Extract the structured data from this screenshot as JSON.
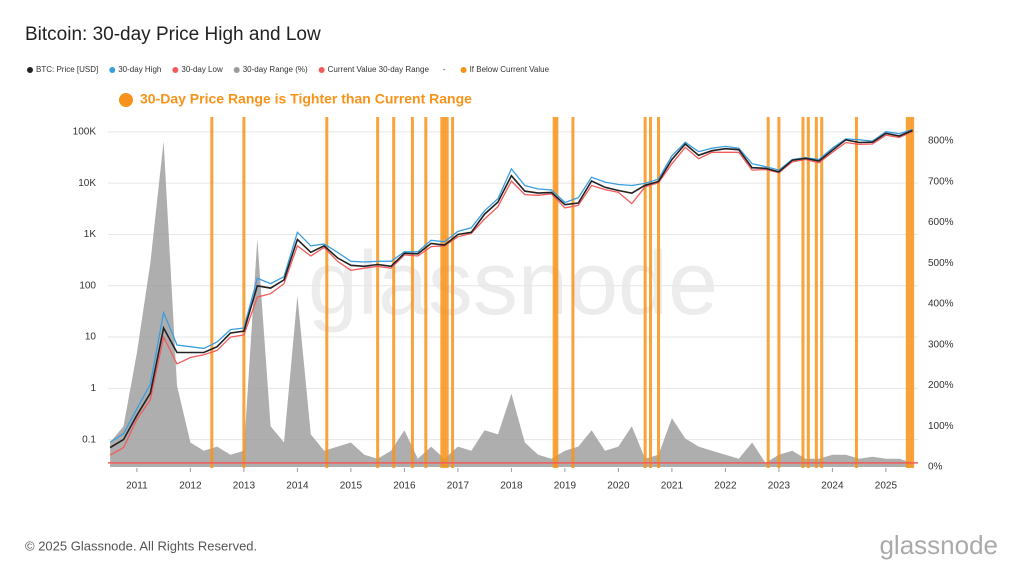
{
  "chart_data": {
    "type": "line",
    "title": "Bitcoin: 30-day Price High and Low",
    "annotation": "30-Day Price Range is Tighter than Current Range",
    "annotation_color": "#f7931a",
    "watermark": "glassnode",
    "footer": "© 2025 Glassnode. All Rights Reserved.",
    "logo": "glassnode",
    "legend_separator": "-",
    "x": [
      2010.5,
      2010.75,
      2011,
      2011.25,
      2011.5,
      2011.75,
      2012,
      2012.25,
      2012.5,
      2012.75,
      2013,
      2013.25,
      2013.5,
      2013.75,
      2014,
      2014.25,
      2014.5,
      2014.75,
      2015,
      2015.25,
      2015.5,
      2015.75,
      2016,
      2016.25,
      2016.5,
      2016.75,
      2017,
      2017.25,
      2017.5,
      2017.75,
      2018,
      2018.25,
      2018.5,
      2018.75,
      2019,
      2019.25,
      2019.5,
      2019.75,
      2020,
      2020.25,
      2020.5,
      2020.75,
      2021,
      2021.25,
      2021.5,
      2021.75,
      2022,
      2022.25,
      2022.5,
      2022.75,
      2023,
      2023.25,
      2023.5,
      2023.75,
      2024,
      2024.25,
      2024.5,
      2024.75,
      2025,
      2025.25,
      2025.5
    ],
    "xlim": [
      2010.46,
      2025.6
    ],
    "xticks": [
      2011,
      2012,
      2013,
      2014,
      2015,
      2016,
      2017,
      2018,
      2019,
      2020,
      2021,
      2022,
      2023,
      2024,
      2025
    ],
    "log_scale": true,
    "grid": true,
    "ylim": [
      0.028,
      195000
    ],
    "yticks": [
      0.1,
      1,
      10,
      100,
      {
        "value": 1000,
        "label": "1K"
      },
      {
        "value": 10000,
        "label": "10K"
      },
      {
        "value": 100000,
        "label": "100K"
      }
    ],
    "y2lim": [
      -2.5,
      859
    ],
    "y2ticks": [
      {
        "value": 0,
        "label": "0%"
      },
      {
        "value": 100,
        "label": "100%"
      },
      {
        "value": 200,
        "label": "200%"
      },
      {
        "value": 300,
        "label": "300%"
      },
      {
        "value": 400,
        "label": "400%"
      },
      {
        "value": 500,
        "label": "500%"
      },
      {
        "value": 600,
        "label": "600%"
      },
      {
        "value": 700,
        "label": "700%"
      },
      {
        "value": 800,
        "label": "800%"
      }
    ],
    "series": [
      {
        "name": "BTC: Price [USD]",
        "color": "#222222",
        "values": [
          0.07,
          0.1,
          0.3,
          0.8,
          15,
          5,
          5,
          5,
          6.5,
          12,
          13,
          100,
          90,
          130,
          800,
          450,
          600,
          350,
          250,
          240,
          260,
          240,
          430,
          420,
          670,
          620,
          1000,
          1100,
          2500,
          4300,
          14000,
          7000,
          6400,
          6600,
          3800,
          4100,
          11000,
          8300,
          7200,
          6400,
          9100,
          10800,
          29000,
          58000,
          35000,
          43000,
          47000,
          45000,
          20000,
          19500,
          16600,
          28000,
          30500,
          27000,
          44000,
          70000,
          62000,
          63000,
          94000,
          83000,
          107000
        ]
      },
      {
        "name": "30-day High",
        "color": "#3b9ee0",
        "values": [
          0.09,
          0.13,
          0.4,
          1.2,
          30,
          7,
          6.5,
          6,
          8,
          14,
          15,
          140,
          110,
          150,
          1100,
          600,
          650,
          450,
          300,
          290,
          300,
          300,
          460,
          460,
          770,
          720,
          1150,
          1350,
          2900,
          5000,
          19000,
          9000,
          7700,
          7400,
          4200,
          5200,
          13000,
          10500,
          9400,
          9000,
          9900,
          12000,
          34000,
          63000,
          41000,
          48000,
          52000,
          48000,
          24000,
          21000,
          18000,
          29000,
          31500,
          29000,
          48000,
          73000,
          70000,
          66000,
          101000,
          92000,
          111000
        ]
      },
      {
        "name": "30-day Low",
        "color": "#f25c5c",
        "values": [
          0.05,
          0.07,
          0.25,
          0.6,
          10,
          3,
          4,
          4.5,
          5.5,
          10,
          11,
          60,
          70,
          110,
          600,
          380,
          560,
          300,
          200,
          220,
          240,
          220,
          400,
          380,
          580,
          600,
          900,
          1050,
          2000,
          3500,
          11000,
          6000,
          5800,
          6200,
          3300,
          3700,
          9000,
          7500,
          6600,
          4000,
          8500,
          10200,
          24000,
          50000,
          30000,
          40000,
          40000,
          40000,
          18000,
          18500,
          16000,
          26000,
          29000,
          25000,
          40000,
          62000,
          57000,
          58000,
          86000,
          78000,
          102000
        ]
      },
      {
        "name": "30-day Range (%)",
        "color": "#9a9a9a",
        "axis": "y2",
        "values": [
          60,
          100,
          280,
          500,
          800,
          200,
          60,
          40,
          50,
          30,
          40,
          560,
          100,
          60,
          420,
          80,
          40,
          50,
          60,
          30,
          20,
          40,
          90,
          20,
          50,
          20,
          50,
          40,
          90,
          80,
          180,
          60,
          30,
          20,
          40,
          50,
          90,
          40,
          50,
          100,
          20,
          30,
          120,
          70,
          50,
          40,
          30,
          20,
          60,
          10,
          30,
          40,
          20,
          20,
          30,
          30,
          20,
          25,
          20,
          20,
          10
        ]
      },
      {
        "name": "Current Value 30-day Range",
        "color": "#f25c5c",
        "axis": "y2",
        "value": 10
      },
      {
        "name": "If Below Current Value",
        "color": "#f7931a",
        "x": [
          2012.4,
          2013.0,
          2014.55,
          2015.5,
          2015.8,
          2016.15,
          2016.4,
          2016.7,
          2016.75,
          2016.8,
          2016.9,
          2018.8,
          2018.85,
          2019.15,
          2020.5,
          2020.6,
          2020.75,
          2022.8,
          2023.0,
          2023.45,
          2023.55,
          2023.7,
          2023.8,
          2024.45,
          2025.4,
          2025.45,
          2025.5
        ]
      }
    ]
  }
}
